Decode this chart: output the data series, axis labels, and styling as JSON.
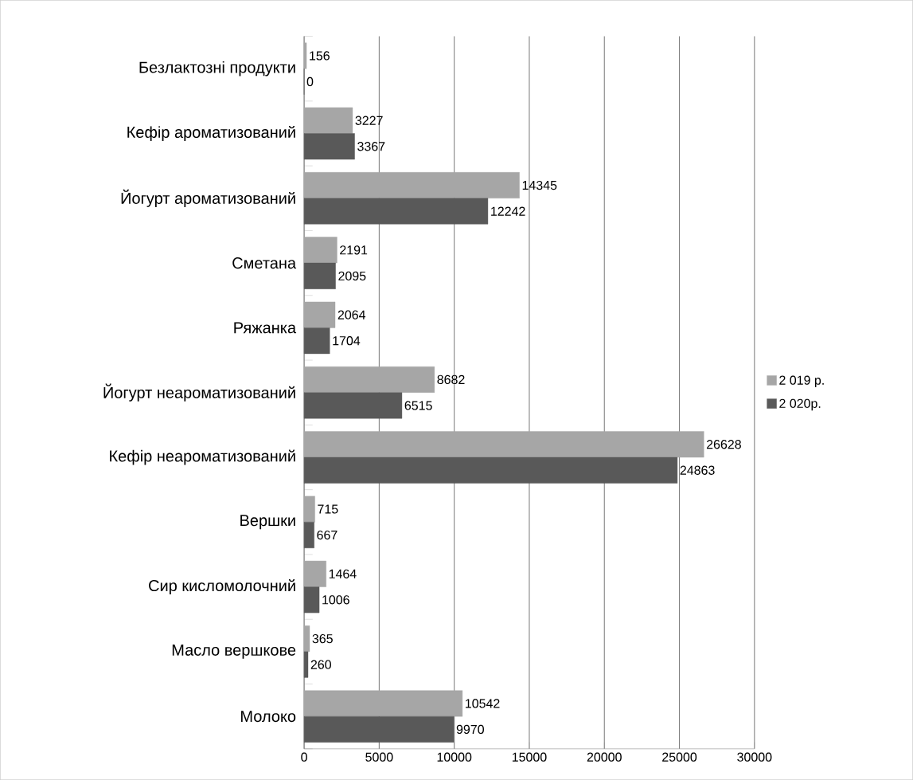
{
  "chart_data": {
    "type": "bar",
    "orientation": "horizontal",
    "categories": [
      "Безлактозні продукти",
      "Кефір ароматизований",
      "Йогурт ароматизований",
      "Сметана",
      "Ряжанка",
      "Йогурт неароматизований",
      "Кефір неароматизований",
      "Вершки",
      "Сир кисломолочний",
      "Масло вершкове",
      "Молоко"
    ],
    "series": [
      {
        "name": "2 019 р.",
        "color": "#a6a6a6",
        "values": [
          156,
          3227,
          14345,
          2191,
          2064,
          8682,
          26628,
          715,
          1464,
          365,
          10542
        ]
      },
      {
        "name": "2 020р.",
        "color": "#595959",
        "values": [
          0,
          3367,
          12242,
          2095,
          1704,
          6515,
          24863,
          667,
          1006,
          260,
          9970
        ]
      }
    ],
    "xlim": [
      0,
      30000
    ],
    "xticks": [
      0,
      5000,
      10000,
      15000,
      20000,
      25000,
      30000
    ],
    "grid": "x",
    "legend": "right",
    "data_labels": true
  }
}
